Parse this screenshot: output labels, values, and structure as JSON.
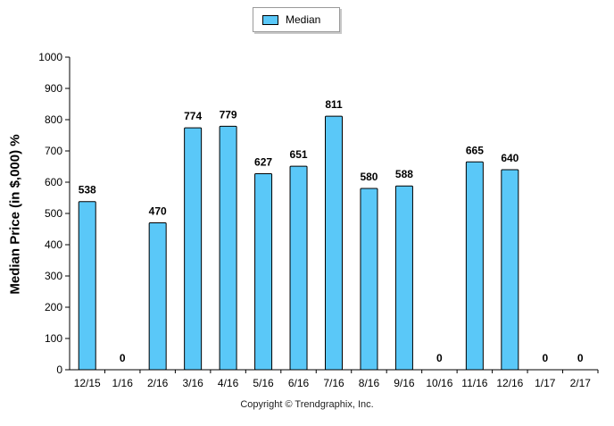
{
  "chart_data": {
    "type": "bar",
    "categories": [
      "12/15",
      "1/16",
      "2/16",
      "3/16",
      "4/16",
      "5/16",
      "6/16",
      "7/16",
      "8/16",
      "9/16",
      "10/16",
      "11/16",
      "12/16",
      "1/17",
      "2/17"
    ],
    "series": [
      {
        "name": "Median",
        "values": [
          538,
          0,
          470,
          774,
          779,
          627,
          651,
          811,
          580,
          588,
          0,
          665,
          640,
          0,
          0
        ]
      }
    ],
    "data_labels": [
      "538",
      "0",
      "470",
      "774",
      "779",
      "627",
      "651",
      "811",
      "580",
      "588",
      "0",
      "665",
      "640",
      "0",
      "0"
    ],
    "ylabel": "Median Price (in $,000) %",
    "xlabel": "",
    "ylim": [
      0,
      1000
    ],
    "yticks": [
      "0",
      "100",
      "200",
      "300",
      "400",
      "500",
      "600",
      "700",
      "800",
      "900",
      "1000"
    ],
    "grid": false,
    "legend": "top-center",
    "bar_color": "#5ac8f8",
    "bar_edge_color": "#000000"
  },
  "footer": {
    "copyright": "Copyright © Trendgraphix, Inc."
  }
}
